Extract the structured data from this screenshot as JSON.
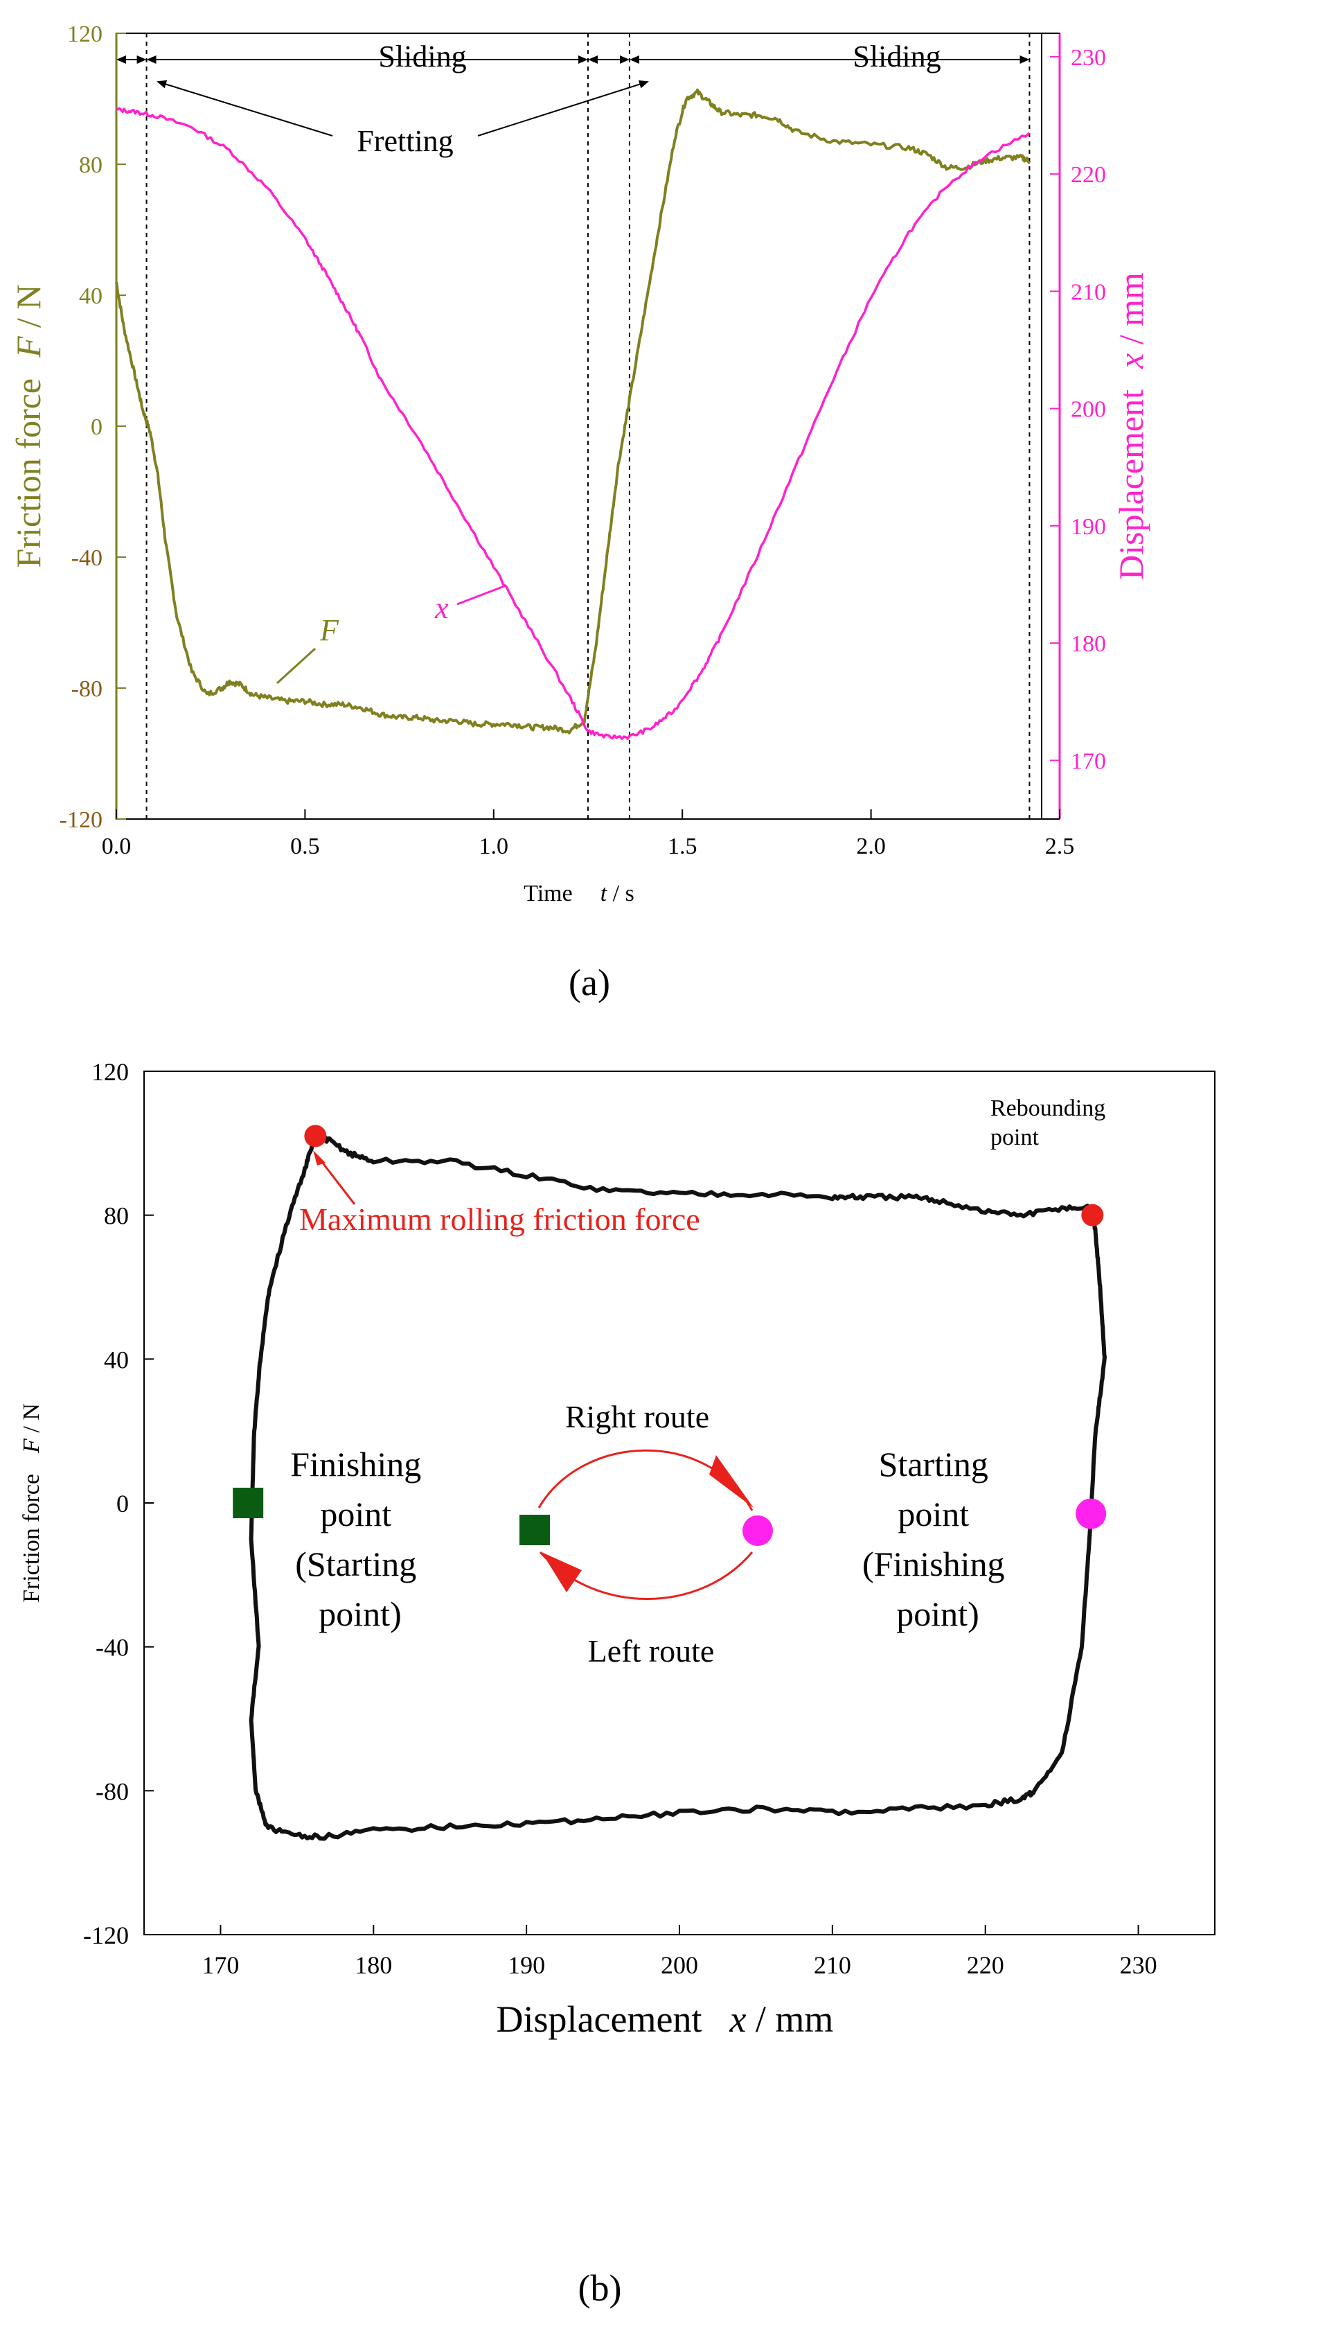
{
  "colors": {
    "friction": "#808020",
    "displacement": "#ff22cc",
    "loop": "#111111",
    "red": "#e8211c",
    "green": "#0a5c12",
    "magenta": "#ff22ee",
    "tick_brown": "#8b5a14"
  },
  "chart_data": [
    {
      "type": "line",
      "panel": "(a)",
      "xlabel_prefix": "Time",
      "xlabel_var": "t",
      "xlabel_unit": " / s",
      "ylabel_left_text": "Friction force",
      "ylabel_left_var": "F",
      "ylabel_left_unit": " / N",
      "ylabel_right_text": "Displacement",
      "ylabel_right_var": "x",
      "ylabel_right_unit": " / mm",
      "xlim": [
        0,
        2.5
      ],
      "ylim_left": [
        -120,
        120
      ],
      "ylim_right": [
        165,
        232
      ],
      "x_ticks": [
        "0.0",
        "0.5",
        "1.0",
        "1.5",
        "2.0",
        "2.5"
      ],
      "y_left_ticks": [
        "120",
        "80",
        "40",
        "0",
        "-40",
        "-80",
        "-120"
      ],
      "y_right_ticks": [
        "230",
        "220",
        "210",
        "200",
        "190",
        "180",
        "170"
      ],
      "phase_boundaries_s": [
        0.0,
        0.08,
        1.25,
        1.36,
        2.42
      ],
      "phases": [
        "Sliding",
        "Sliding"
      ],
      "fretting_label": "Fretting",
      "series": [
        {
          "name": "F",
          "axis": "left",
          "label": "F",
          "x": [
            0.0,
            0.02,
            0.05,
            0.07,
            0.09,
            0.11,
            0.13,
            0.16,
            0.2,
            0.24,
            0.28,
            0.3,
            0.33,
            0.36,
            0.4,
            0.45,
            0.5,
            0.55,
            0.6,
            0.65,
            0.7,
            0.75,
            0.8,
            0.85,
            0.9,
            0.95,
            1.0,
            1.05,
            1.1,
            1.15,
            1.2,
            1.24,
            1.27,
            1.3,
            1.33,
            1.36,
            1.4,
            1.44,
            1.48,
            1.51,
            1.54,
            1.57,
            1.6,
            1.65,
            1.7,
            1.75,
            1.8,
            1.9,
            2.0,
            2.1,
            2.15,
            2.2,
            2.25,
            2.3,
            2.35,
            2.4,
            2.42
          ],
          "values": [
            44,
            30,
            15,
            5,
            -2,
            -15,
            -35,
            -58,
            -75,
            -82,
            -80,
            -78,
            -79,
            -82,
            -83,
            -84,
            -84,
            -85,
            -85,
            -86,
            -88,
            -89,
            -89,
            -90,
            -90,
            -91,
            -91,
            -91,
            -92,
            -92,
            -93,
            -90,
            -68,
            -40,
            -12,
            8,
            35,
            62,
            88,
            100,
            102,
            99,
            96,
            95,
            95,
            94,
            90,
            87,
            86,
            85,
            83,
            79,
            79,
            81,
            82,
            82,
            81
          ]
        },
        {
          "name": "x",
          "axis": "right",
          "label": "x",
          "x": [
            0.0,
            0.05,
            0.1,
            0.2,
            0.3,
            0.4,
            0.5,
            0.55,
            0.6,
            0.65,
            0.7,
            0.8,
            0.9,
            1.0,
            1.1,
            1.2,
            1.25,
            1.3,
            1.36,
            1.42,
            1.48,
            1.55,
            1.6,
            1.7,
            1.8,
            1.9,
            2.0,
            2.1,
            2.2,
            2.3,
            2.42
          ],
          "values": [
            225.5,
            225.3,
            225.0,
            224.0,
            222.0,
            218.8,
            214.5,
            211.8,
            209.0,
            206.0,
            202.5,
            197.5,
            192.0,
            186.5,
            181.0,
            175.5,
            172.5,
            172.0,
            172.0,
            172.8,
            174.3,
            177.5,
            180.5,
            187.5,
            195.0,
            202.5,
            209.5,
            215.0,
            219.0,
            221.5,
            223.5
          ]
        }
      ]
    },
    {
      "type": "line",
      "panel": "(b)",
      "xlabel_text": "Displacement",
      "xlabel_var": "x",
      "xlabel_unit": " / mm",
      "ylabel_text": "Friction force",
      "ylabel_var": "F",
      "ylabel_unit": " / N",
      "xlim": [
        165,
        235
      ],
      "ylim": [
        -120,
        120
      ],
      "x_ticks": [
        "170",
        "180",
        "190",
        "200",
        "210",
        "220",
        "230"
      ],
      "y_ticks": [
        "120",
        "80",
        "40",
        "0",
        "-40",
        "-80",
        "-120"
      ],
      "series": [
        {
          "name": "F-x loop",
          "x": [
            227.0,
            227.2,
            227.5,
            227.8,
            227.6,
            227.2,
            226.8,
            226.3,
            225.0,
            223.2,
            222.5,
            220.0,
            215.0,
            210.0,
            205.5,
            200.0,
            195.0,
            190.0,
            185.0,
            180.0,
            176.5,
            174.5,
            173.0,
            172.3,
            172.0,
            172.5,
            172.0,
            172.2,
            172.6,
            173.2,
            174.5,
            175.6,
            176.2,
            177.0,
            178.5,
            180.0,
            185.0,
            190.0,
            195.0,
            200.0,
            205.0,
            210.0,
            212.0,
            215.0,
            217.0,
            220.0,
            222.5,
            225.0,
            227.0
          ],
          "values": [
            82,
            75,
            60,
            40,
            33,
            20,
            -10,
            -40,
            -70,
            -80,
            -82,
            -84,
            -85,
            -86,
            -85,
            -86,
            -88,
            -89,
            -90,
            -91,
            -93,
            -92,
            -90,
            -80,
            -60,
            -40,
            -10,
            20,
            40,
            60,
            80,
            94,
            102,
            101,
            97,
            95,
            95,
            91,
            87,
            86,
            86,
            85,
            85,
            85,
            84,
            81,
            80,
            82,
            82
          ]
        }
      ],
      "markers": {
        "max_rolling": {
          "x": 176.2,
          "y": 102
        },
        "rebounding": {
          "x": 227.0,
          "y": 80
        },
        "finishing_square": {
          "x": 171.8,
          "y": 0
        },
        "starting_circle": {
          "x": 226.9,
          "y": -3
        }
      },
      "annotations": {
        "rebounding_line1": "Rebounding",
        "rebounding_line2": "point",
        "max_rolling": "Maximum rolling friction force",
        "right_route": "Right route",
        "left_route": "Left route",
        "finishing_lines": [
          "Finishing",
          "point",
          "(Starting",
          "point)"
        ],
        "starting_lines": [
          "Starting",
          "point",
          "(Finishing",
          "point)"
        ]
      }
    }
  ]
}
